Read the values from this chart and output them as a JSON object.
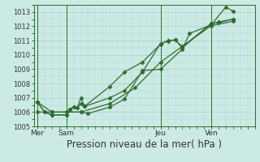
{
  "bg_color": "#cceae4",
  "grid_color": "#aacccc",
  "line_color": "#2d6e2d",
  "marker_color": "#2d6e2d",
  "xlabel": "Pression niveau de la mer( hPa )",
  "xlabel_fontsize": 8.5,
  "ylim": [
    1005.0,
    1013.5
  ],
  "yticks": [
    1005,
    1006,
    1007,
    1008,
    1009,
    1010,
    1011,
    1012,
    1013
  ],
  "xtick_labels": [
    "Mer",
    "Sam",
    "Jeu",
    "Ven"
  ],
  "xtick_positions": [
    0,
    8,
    34,
    48
  ],
  "vline_positions": [
    0,
    8,
    34,
    48
  ],
  "plot_xlim": [
    -1,
    60
  ],
  "series1_x": [
    0,
    2,
    4,
    8,
    9,
    10,
    11,
    12,
    13,
    20,
    24,
    29,
    34,
    36,
    38,
    40,
    48,
    50,
    54
  ],
  "series1_y": [
    1006.7,
    1006.0,
    1005.8,
    1005.8,
    1006.2,
    1006.35,
    1006.3,
    1006.6,
    1006.4,
    1007.0,
    1007.5,
    1008.8,
    1010.8,
    1010.95,
    1011.05,
    1010.55,
    1012.2,
    1012.25,
    1012.5
  ],
  "series2_x": [
    0,
    2,
    4,
    8,
    9,
    10,
    11,
    12,
    13,
    20,
    24,
    29,
    34,
    36,
    38,
    40,
    48,
    50,
    54
  ],
  "series2_y": [
    1006.7,
    1006.0,
    1005.8,
    1005.8,
    1006.2,
    1006.35,
    1006.3,
    1007.0,
    1006.4,
    1007.8,
    1008.8,
    1009.5,
    1010.75,
    1011.0,
    1011.05,
    1010.5,
    1012.2,
    1012.3,
    1012.5
  ],
  "series3_x": [
    0,
    4,
    8,
    12,
    20,
    27,
    34,
    40,
    48,
    54
  ],
  "series3_y": [
    1006.7,
    1006.0,
    1006.0,
    1006.0,
    1006.6,
    1007.7,
    1009.5,
    1010.6,
    1012.05,
    1012.35
  ],
  "series4_x": [
    0,
    4,
    8,
    12,
    14,
    20,
    24,
    29,
    34,
    40,
    42,
    48,
    52,
    54
  ],
  "series4_y": [
    1006.0,
    1006.0,
    1006.0,
    1006.0,
    1005.9,
    1006.35,
    1006.9,
    1008.9,
    1009.0,
    1010.4,
    1011.5,
    1012.1,
    1013.35,
    1013.05
  ]
}
